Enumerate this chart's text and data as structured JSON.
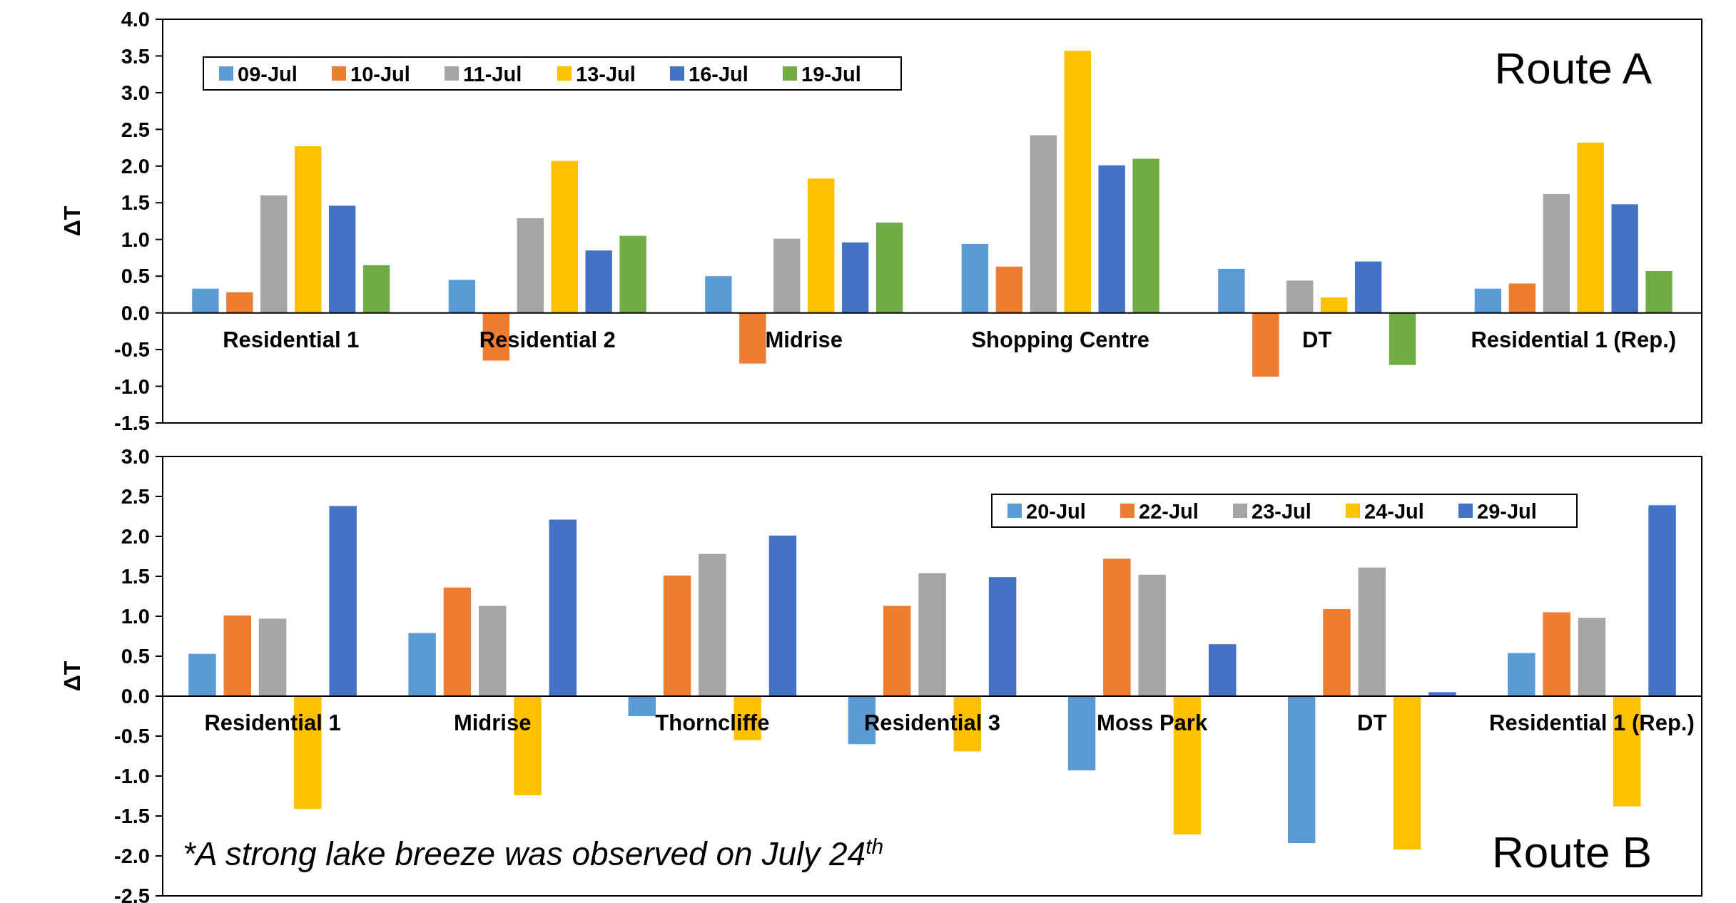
{
  "chart_data": [
    {
      "type": "bar",
      "title": "Route A",
      "ylabel": "ΔT",
      "categories": [
        "Residential 1",
        "Residential 2",
        "Midrise",
        "Shopping Centre",
        "DT",
        "Residential 1 (Rep.)"
      ],
      "series": [
        {
          "name": "09-Jul",
          "color": "#5b9bd5",
          "values": [
            0.33,
            0.45,
            0.5,
            0.94,
            0.6,
            0.33
          ]
        },
        {
          "name": "10-Jul",
          "color": "#ed7d31",
          "values": [
            0.28,
            -0.65,
            -0.69,
            0.63,
            -0.87,
            0.4
          ]
        },
        {
          "name": "11-Jul",
          "color": "#a5a5a5",
          "values": [
            1.6,
            1.29,
            1.01,
            2.42,
            0.44,
            1.62
          ]
        },
        {
          "name": "13-Jul",
          "color": "#ffc000",
          "values": [
            2.27,
            2.07,
            1.83,
            3.57,
            0.21,
            2.32
          ]
        },
        {
          "name": "16-Jul",
          "color": "#4472c4",
          "values": [
            1.46,
            0.85,
            0.96,
            2.01,
            0.7,
            1.48
          ]
        },
        {
          "name": "19-Jul",
          "color": "#70ad47",
          "values": [
            0.65,
            1.05,
            1.23,
            2.1,
            -0.71,
            0.57
          ]
        }
      ],
      "ylim": [
        -1.5,
        4.0
      ],
      "yticks": [
        {
          "value": -1.5,
          "label": "-1.5"
        },
        {
          "value": -1.0,
          "label": "-1.0"
        },
        {
          "value": -0.5,
          "label": "-0.5"
        },
        {
          "value": 0,
          "label": "0.0"
        },
        {
          "value": 0.5,
          "label": "0.5"
        },
        {
          "value": 1.0,
          "label": "1.0"
        },
        {
          "value": 1.5,
          "label": "1.5"
        },
        {
          "value": 2.0,
          "label": "2.0"
        },
        {
          "value": 2.5,
          "label": "2.5"
        },
        {
          "value": 3.0,
          "label": "3.0"
        },
        {
          "value": 3.5,
          "label": "3.5"
        },
        {
          "value": 4.0,
          "label": "4.0"
        }
      ],
      "grid": false,
      "legend": "top left"
    },
    {
      "type": "bar",
      "title": "Route B",
      "ylabel": "ΔT",
      "categories": [
        "Residential 1",
        "Midrise",
        "Thorncliffe",
        "Residential 3",
        "Moss Park",
        "DT",
        "Residential 1 (Rep.)"
      ],
      "series": [
        {
          "name": "20-Jul",
          "color": "#5b9bd5",
          "values": [
            0.53,
            0.79,
            -0.25,
            -0.6,
            -0.93,
            -1.84,
            0.54
          ]
        },
        {
          "name": "22-Jul",
          "color": "#ed7d31",
          "values": [
            1.01,
            1.36,
            1.51,
            1.13,
            1.72,
            1.09,
            1.05
          ]
        },
        {
          "name": "23-Jul",
          "color": "#a5a5a5",
          "values": [
            0.97,
            1.13,
            1.78,
            1.54,
            1.52,
            1.61,
            0.98
          ]
        },
        {
          "name": "24-Jul",
          "color": "#ffc000",
          "values": [
            -1.41,
            -1.24,
            -0.55,
            -0.69,
            -1.73,
            -1.92,
            -1.38
          ]
        },
        {
          "name": "29-Jul",
          "color": "#4472c4",
          "values": [
            2.38,
            2.21,
            2.01,
            1.49,
            0.65,
            0.05,
            2.39
          ]
        }
      ],
      "ylim": [
        -2.5,
        3.0
      ],
      "yticks": [
        {
          "value": -2.5,
          "label": "-2.5"
        },
        {
          "value": -2.0,
          "label": "-2.0"
        },
        {
          "value": -1.5,
          "label": "-1.5"
        },
        {
          "value": -1.0,
          "label": "-1.0"
        },
        {
          "value": -0.5,
          "label": "-0.5"
        },
        {
          "value": 0,
          "label": "0.0"
        },
        {
          "value": 0.5,
          "label": "0.5"
        },
        {
          "value": 1.0,
          "label": "1.0"
        },
        {
          "value": 1.5,
          "label": "1.5"
        },
        {
          "value": 2.0,
          "label": "2.0"
        },
        {
          "value": 2.5,
          "label": "2.5"
        },
        {
          "value": 3.0,
          "label": "3.0"
        }
      ],
      "grid": false,
      "legend": "top right",
      "annotations": [
        "*A strong lake breeze was observed on July 24$^{th}$"
      ]
    }
  ]
}
